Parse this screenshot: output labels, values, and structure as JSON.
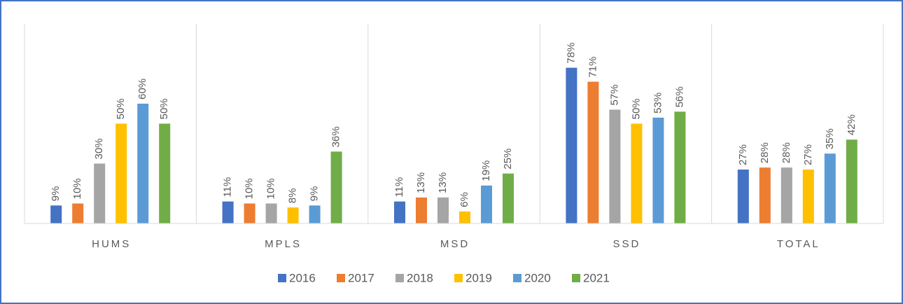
{
  "chart_data": {
    "type": "bar",
    "categories": [
      "HUMS",
      "MPLS",
      "MSD",
      "SSD",
      "TOTAL"
    ],
    "ylim": [
      0,
      100
    ],
    "legend": "bottom",
    "series": [
      {
        "name": "2016",
        "color": "#4472c4",
        "values": [
          9,
          11,
          11,
          78,
          27
        ],
        "value_labels": [
          "9%",
          "11%",
          "11%",
          "78%",
          "27%"
        ]
      },
      {
        "name": "2017",
        "color": "#ed7d31",
        "values": [
          10,
          10,
          13,
          71,
          28
        ],
        "value_labels": [
          "10%",
          "10%",
          "13%",
          "71%",
          "28%"
        ]
      },
      {
        "name": "2018",
        "color": "#a5a5a5",
        "values": [
          30,
          10,
          13,
          57,
          28
        ],
        "value_labels": [
          "30%",
          "10%",
          "13%",
          "57%",
          "28%"
        ]
      },
      {
        "name": "2019",
        "color": "#ffc000",
        "values": [
          50,
          8,
          6,
          50,
          27
        ],
        "value_labels": [
          "50%",
          "8%",
          "6%",
          "50%",
          "27%"
        ]
      },
      {
        "name": "2020",
        "color": "#5b9bd5",
        "values": [
          60,
          9,
          19,
          53,
          35
        ],
        "value_labels": [
          "60%",
          "9%",
          "19%",
          "53%",
          "35%"
        ]
      },
      {
        "name": "2021",
        "color": "#70ad47",
        "values": [
          50,
          36,
          25,
          56,
          42
        ],
        "value_labels": [
          "50%",
          "36%",
          "25%",
          "56%",
          "42%"
        ]
      }
    ]
  }
}
